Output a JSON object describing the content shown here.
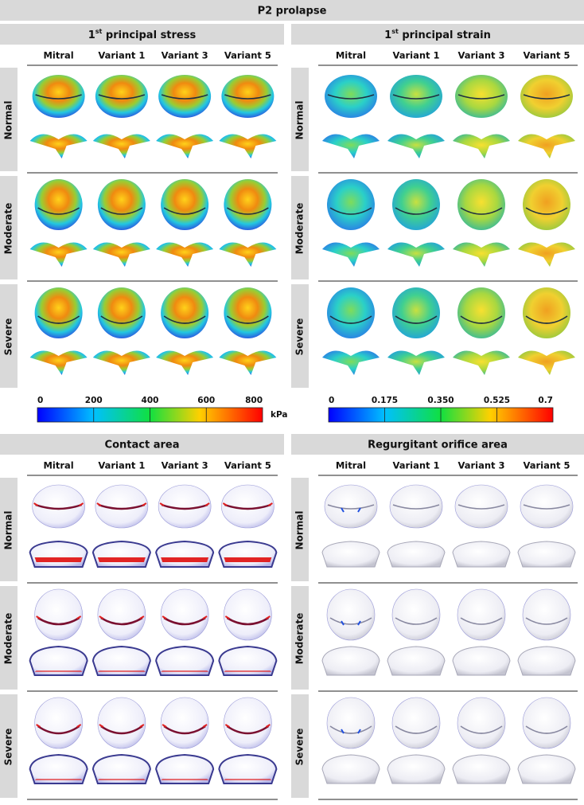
{
  "title": "P2 prolapse",
  "panels": [
    {
      "title_pre": "1",
      "title_sup": "st",
      "title_post": " principal stress",
      "columns": [
        "Mitral",
        "Variant 1",
        "Variant 3",
        "Variant 5"
      ],
      "rows": [
        "Normal",
        "Moderate",
        "Severe"
      ],
      "colorbar": {
        "ticks": [
          "0",
          "200",
          "400",
          "600",
          "800"
        ],
        "unit": "kPa"
      }
    },
    {
      "title_pre": "1",
      "title_sup": "st",
      "title_post": " principal strain",
      "columns": [
        "Mitral",
        "Variant 1",
        "Variant 3",
        "Variant 5"
      ],
      "rows": [
        "Normal",
        "Moderate",
        "Severe"
      ],
      "colorbar": {
        "ticks": [
          "0",
          "0.175",
          "0.350",
          "0.525",
          "0.7"
        ]
      }
    },
    {
      "title": "Contact area",
      "columns": [
        "Mitral",
        "Variant 1",
        "Variant 3",
        "Variant 5"
      ],
      "rows": [
        "Normal",
        "Moderate",
        "Severe"
      ]
    },
    {
      "title": "Regurgitant orifice area",
      "columns": [
        "Mitral",
        "Variant 1",
        "Variant 3",
        "Variant 5"
      ],
      "rows": [
        "Normal",
        "Moderate",
        "Severe"
      ]
    }
  ]
}
